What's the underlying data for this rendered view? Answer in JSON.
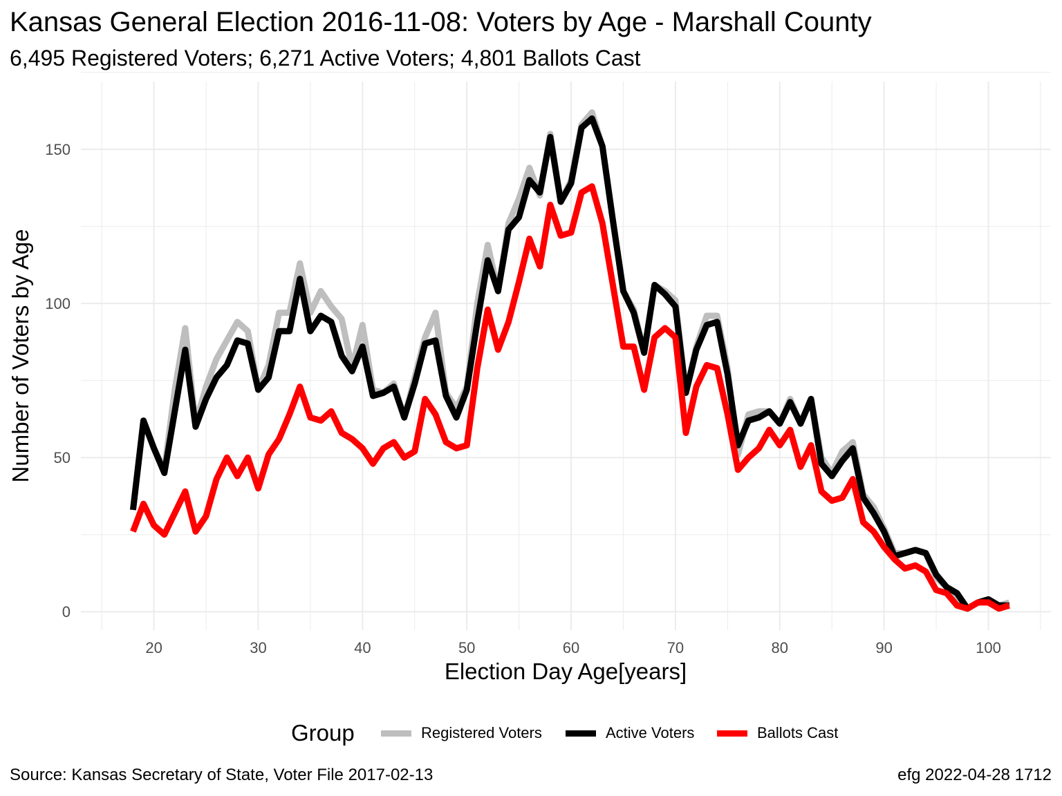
{
  "title": "Kansas General Election 2016-11-08:  Voters by Age - Marshall County",
  "subtitle": "6,495 Registered Voters; 6,271 Active Voters; 4,801 Ballots Cast",
  "caption_left": "Source:  Kansas Secretary of State, Voter File  2017-02-13",
  "caption_right": "efg 2022-04-28 1712",
  "legend": {
    "title": "Group",
    "items": [
      {
        "label": "Registered Voters",
        "color": "#bebebe"
      },
      {
        "label": "Active Voters",
        "color": "#000000"
      },
      {
        "label": "Ballots Cast",
        "color": "#ff0000"
      }
    ]
  },
  "chart_data": {
    "type": "line",
    "title": "Kansas General Election 2016-11-08:  Voters by Age - Marshall County",
    "subtitle": "6,495 Registered Voters; 6,271 Active Voters; 4,801 Ballots Cast",
    "xlabel": "Election Day Age[years]",
    "ylabel": "Number of Voters by Age",
    "xlim": [
      13,
      106
    ],
    "ylim": [
      -6,
      172
    ],
    "x_ticks": [
      20,
      30,
      40,
      50,
      60,
      70,
      80,
      90,
      100
    ],
    "y_ticks": [
      0,
      50,
      100,
      150
    ],
    "grid": true,
    "legend_position": "bottom",
    "x": [
      18,
      19,
      20,
      21,
      22,
      23,
      24,
      25,
      26,
      27,
      28,
      29,
      30,
      31,
      32,
      33,
      34,
      35,
      36,
      37,
      38,
      39,
      40,
      41,
      42,
      43,
      44,
      45,
      46,
      47,
      48,
      49,
      50,
      51,
      52,
      53,
      54,
      55,
      56,
      57,
      58,
      59,
      60,
      61,
      62,
      63,
      64,
      65,
      66,
      67,
      68,
      69,
      70,
      71,
      72,
      73,
      74,
      75,
      76,
      77,
      78,
      79,
      80,
      81,
      82,
      83,
      84,
      85,
      86,
      87,
      88,
      89,
      90,
      91,
      92,
      93,
      94,
      95,
      96,
      97,
      98,
      99,
      100,
      101,
      102
    ],
    "series": [
      {
        "name": "Registered Voters",
        "color": "#bebebe",
        "values": [
          33,
          62,
          53,
          46,
          72,
          92,
          61,
          73,
          82,
          88,
          94,
          91,
          72,
          80,
          97,
          97,
          113,
          97,
          104,
          99,
          95,
          79,
          93,
          72,
          71,
          74,
          63,
          76,
          89,
          97,
          71,
          66,
          73,
          100,
          119,
          104,
          126,
          134,
          144,
          135,
          155,
          133,
          140,
          158,
          162,
          151,
          127,
          104,
          98,
          84,
          106,
          104,
          101,
          71,
          86,
          96,
          96,
          79,
          51,
          64,
          65,
          65,
          61,
          69,
          61,
          69,
          50,
          45,
          52,
          55,
          38,
          34,
          27,
          19,
          19,
          20,
          19,
          11,
          8,
          5,
          1,
          3,
          4,
          2,
          3
        ]
      },
      {
        "name": "Active Voters",
        "color": "#000000",
        "values": [
          33,
          62,
          53,
          45,
          65,
          85,
          60,
          69,
          76,
          80,
          88,
          87,
          72,
          76,
          91,
          91,
          108,
          91,
          96,
          94,
          83,
          78,
          86,
          70,
          71,
          73,
          63,
          74,
          87,
          88,
          70,
          63,
          72,
          94,
          114,
          104,
          124,
          128,
          140,
          136,
          154,
          133,
          139,
          157,
          160,
          151,
          127,
          104,
          97,
          84,
          106,
          103,
          99,
          71,
          85,
          93,
          94,
          77,
          54,
          62,
          63,
          65,
          61,
          68,
          61,
          69,
          48,
          44,
          49,
          53,
          37,
          32,
          26,
          18,
          19,
          20,
          19,
          12,
          8,
          6,
          1,
          3,
          4,
          2,
          2
        ]
      },
      {
        "name": "Ballots Cast",
        "color": "#ff0000",
        "values": [
          26,
          35,
          28,
          25,
          32,
          39,
          26,
          31,
          43,
          50,
          44,
          50,
          40,
          51,
          56,
          64,
          73,
          63,
          62,
          65,
          58,
          56,
          53,
          48,
          53,
          55,
          50,
          52,
          69,
          64,
          55,
          53,
          54,
          79,
          98,
          85,
          94,
          107,
          121,
          112,
          132,
          122,
          123,
          136,
          138,
          126,
          106,
          86,
          86,
          72,
          89,
          92,
          89,
          58,
          73,
          80,
          79,
          64,
          46,
          50,
          53,
          59,
          54,
          59,
          47,
          54,
          39,
          36,
          37,
          43,
          29,
          26,
          21,
          17,
          14,
          15,
          13,
          7,
          6,
          2,
          1,
          3,
          3,
          1,
          2
        ]
      }
    ]
  }
}
